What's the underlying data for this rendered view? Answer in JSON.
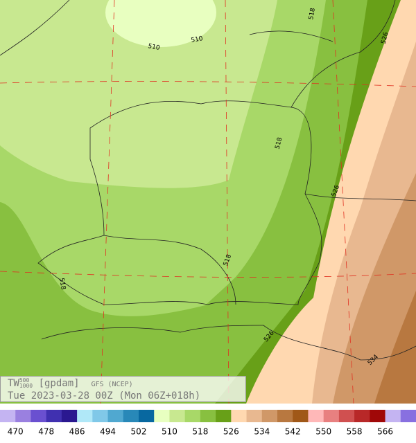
{
  "map": {
    "contour_labels": [
      "510",
      "510",
      "518",
      "526",
      "518",
      "526",
      "518",
      "518",
      "526",
      "534"
    ]
  },
  "caption": {
    "quantity": "TW",
    "upper": "500",
    "lower": "1000",
    "unit": "[gpdam]",
    "model": "GFS (NCEP)",
    "time": "Tue 2023-03-28 00Z (Mon 06Z+018h)"
  },
  "legend": {
    "colors": [
      "#c4b4f2",
      "#9a80e0",
      "#6a50d0",
      "#4030b0",
      "#2a1890",
      "#b0e8f8",
      "#80c8e8",
      "#50a8d0",
      "#2888b8",
      "#0868a0",
      "#e8ffc0",
      "#c8e890",
      "#a8d868",
      "#88c040",
      "#68a018",
      "#ffd8b0",
      "#e8b890",
      "#d09868",
      "#b87840",
      "#a05818",
      "#ffb8b8",
      "#e88080",
      "#d05050",
      "#b82828",
      "#a00808",
      "#c4b4f2",
      "#8870e0"
    ],
    "labels": [
      "470",
      "478",
      "486",
      "494",
      "502",
      "510",
      "518",
      "526",
      "534",
      "542",
      "550",
      "558",
      "566"
    ]
  }
}
